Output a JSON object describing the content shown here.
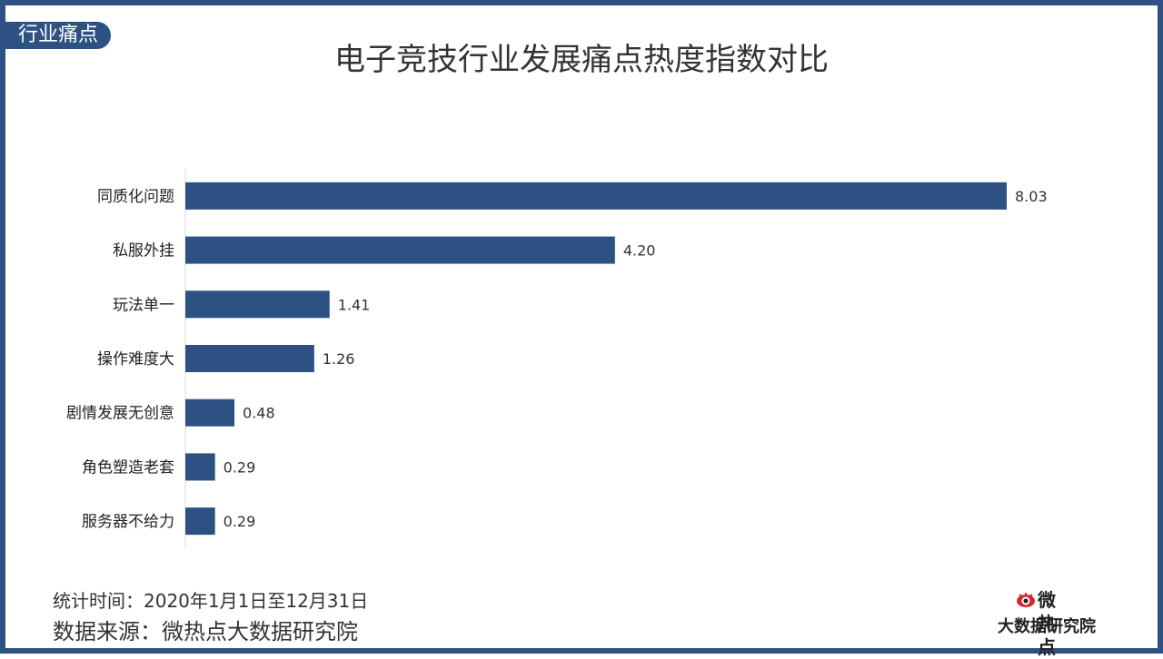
{
  "section_tag": "行业痛点",
  "footer": {
    "time": "统计时间：2020年1月1日至12月31日",
    "source": "数据来源：微热点大数据研究院"
  },
  "logo": {
    "name": "微热点",
    "subtitle": "大数据研究院"
  },
  "colors": {
    "bar": "#2d5183",
    "frame": "#2d5183",
    "text": "#333333",
    "axis": "#d9d9d9"
  },
  "chart_data": {
    "type": "bar",
    "orientation": "horizontal",
    "title": "电子竞技行业发展痛点热度指数对比",
    "categories": [
      "同质化问题",
      "私服外挂",
      "玩法单一",
      "操作难度大",
      "剧情发展无创意",
      "角色塑造老套",
      "服务器不给力"
    ],
    "values": [
      8.03,
      4.2,
      1.41,
      1.26,
      0.48,
      0.29,
      0.29
    ],
    "value_labels": [
      "8.03",
      "4.20",
      "1.41",
      "1.26",
      "0.48",
      "0.29",
      "0.29"
    ],
    "xlim": [
      0,
      8.03
    ],
    "grid": false,
    "legend": "none"
  }
}
